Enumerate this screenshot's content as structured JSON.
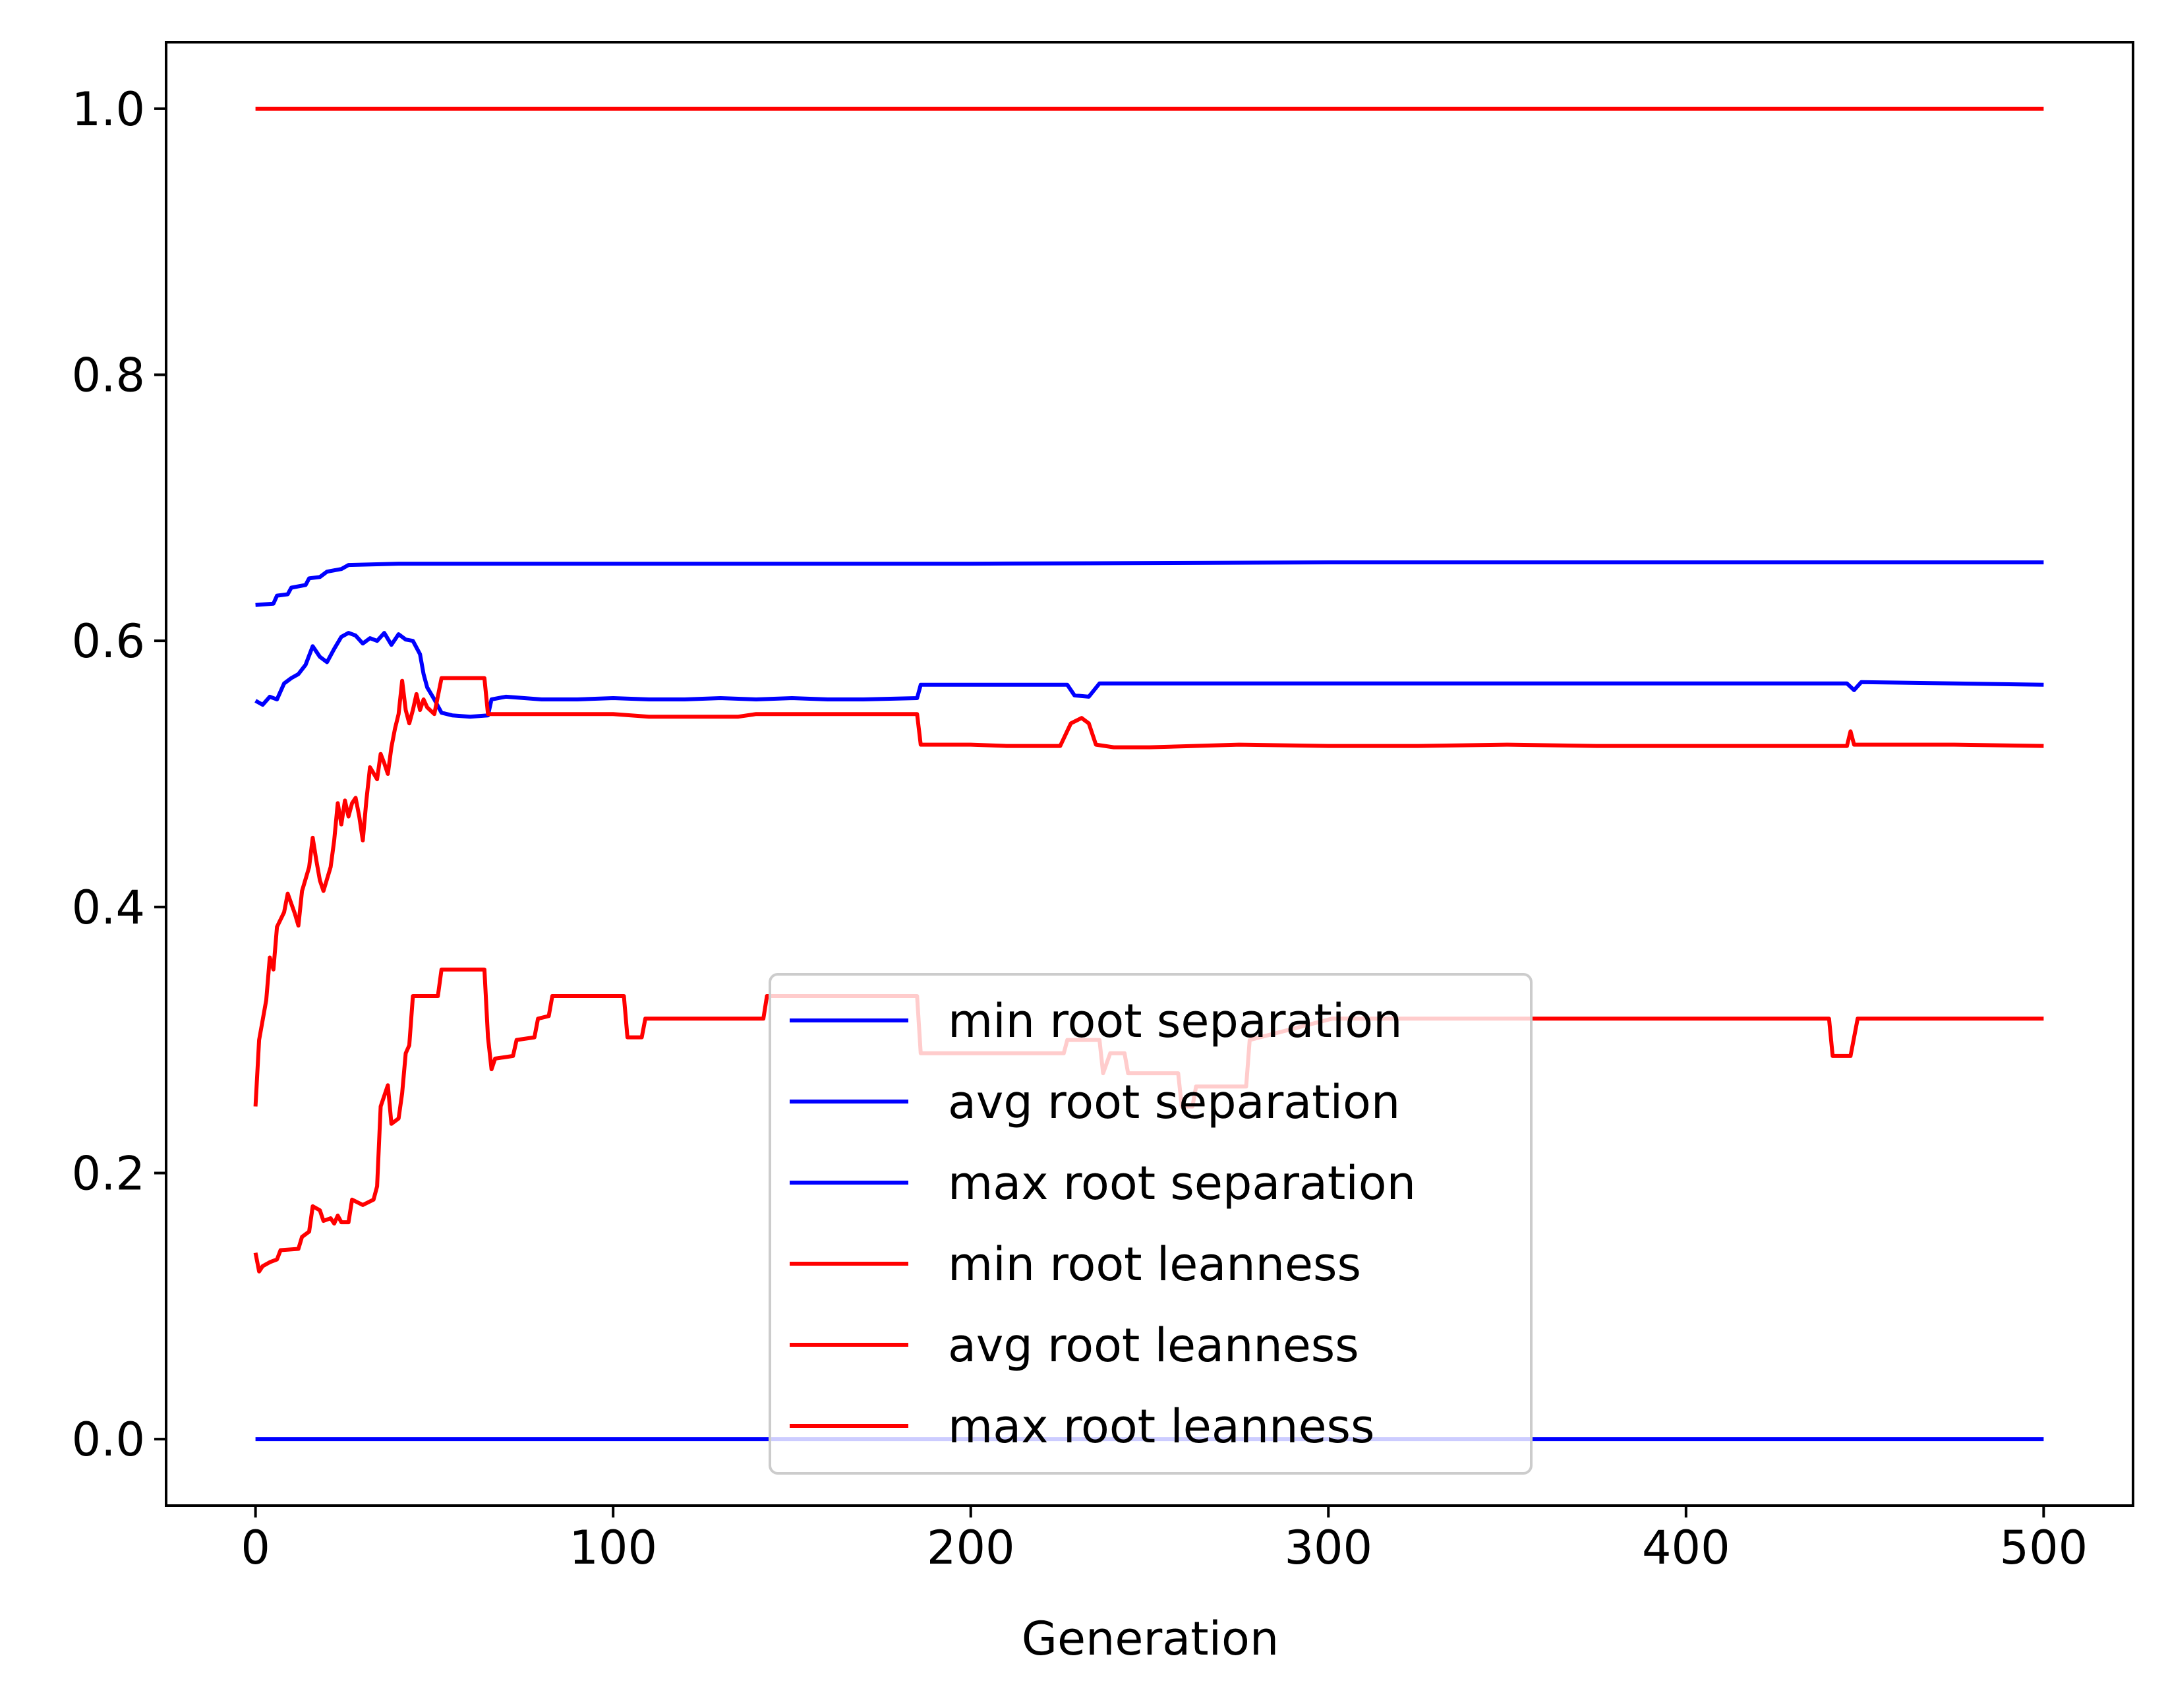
{
  "chart_data": {
    "type": "line",
    "title": "",
    "xlabel": "Generation",
    "ylabel": "",
    "xlim": [
      -25,
      525
    ],
    "ylim": [
      -0.05,
      1.05
    ],
    "x_ticks": [
      0,
      100,
      200,
      300,
      400,
      500
    ],
    "x_tick_labels": [
      "0",
      "100",
      "200",
      "300",
      "400",
      "500"
    ],
    "y_ticks": [
      0.0,
      0.2,
      0.4,
      0.6,
      0.8,
      1.0
    ],
    "y_tick_labels": [
      "0.0",
      "0.2",
      "0.4",
      "0.6",
      "0.8",
      "1.0"
    ],
    "grid": false,
    "legend_position": "lower-center",
    "series": [
      {
        "name": "min root separation",
        "color": "#0000ff",
        "points": [
          [
            0,
            0.0
          ],
          [
            500,
            0.0
          ]
        ]
      },
      {
        "name": "avg root separation",
        "color": "#0000ff",
        "points": [
          [
            0,
            0.555
          ],
          [
            2,
            0.552
          ],
          [
            4,
            0.558
          ],
          [
            6,
            0.556
          ],
          [
            8,
            0.568
          ],
          [
            10,
            0.572
          ],
          [
            12,
            0.575
          ],
          [
            14,
            0.582
          ],
          [
            16,
            0.596
          ],
          [
            18,
            0.588
          ],
          [
            20,
            0.584
          ],
          [
            22,
            0.594
          ],
          [
            24,
            0.603
          ],
          [
            26,
            0.606
          ],
          [
            28,
            0.604
          ],
          [
            30,
            0.598
          ],
          [
            32,
            0.602
          ],
          [
            34,
            0.6
          ],
          [
            36,
            0.606
          ],
          [
            38,
            0.597
          ],
          [
            40,
            0.605
          ],
          [
            42,
            0.601
          ],
          [
            44,
            0.6
          ],
          [
            46,
            0.59
          ],
          [
            47,
            0.575
          ],
          [
            48,
            0.565
          ],
          [
            50,
            0.556
          ],
          [
            52,
            0.546
          ],
          [
            55,
            0.544
          ],
          [
            60,
            0.543
          ],
          [
            65,
            0.544
          ],
          [
            66,
            0.556
          ],
          [
            70,
            0.558
          ],
          [
            80,
            0.556
          ],
          [
            90,
            0.556
          ],
          [
            100,
            0.557
          ],
          [
            110,
            0.556
          ],
          [
            120,
            0.556
          ],
          [
            130,
            0.557
          ],
          [
            140,
            0.556
          ],
          [
            150,
            0.557
          ],
          [
            160,
            0.556
          ],
          [
            170,
            0.556
          ],
          [
            185,
            0.557
          ],
          [
            186,
            0.567
          ],
          [
            200,
            0.567
          ],
          [
            210,
            0.567
          ],
          [
            220,
            0.567
          ],
          [
            227,
            0.567
          ],
          [
            229,
            0.559
          ],
          [
            233,
            0.558
          ],
          [
            236,
            0.568
          ],
          [
            250,
            0.568
          ],
          [
            275,
            0.568
          ],
          [
            300,
            0.568
          ],
          [
            325,
            0.568
          ],
          [
            350,
            0.568
          ],
          [
            375,
            0.568
          ],
          [
            400,
            0.568
          ],
          [
            425,
            0.568
          ],
          [
            445,
            0.568
          ],
          [
            447,
            0.563
          ],
          [
            449,
            0.569
          ],
          [
            475,
            0.568
          ],
          [
            500,
            0.567
          ]
        ]
      },
      {
        "name": "max root separation",
        "color": "#0000ff",
        "points": [
          [
            0,
            0.627
          ],
          [
            5,
            0.628
          ],
          [
            6,
            0.634
          ],
          [
            9,
            0.635
          ],
          [
            10,
            0.64
          ],
          [
            14,
            0.642
          ],
          [
            15,
            0.647
          ],
          [
            18,
            0.648
          ],
          [
            20,
            0.652
          ],
          [
            24,
            0.654
          ],
          [
            26,
            0.657
          ],
          [
            40,
            0.658
          ],
          [
            100,
            0.658
          ],
          [
            200,
            0.658
          ],
          [
            300,
            0.659
          ],
          [
            400,
            0.659
          ],
          [
            500,
            0.659
          ]
        ]
      },
      {
        "name": "min root leanness",
        "color": "#ff0000",
        "points": [
          [
            0,
            0.14
          ],
          [
            1,
            0.126
          ],
          [
            2,
            0.13
          ],
          [
            4,
            0.133
          ],
          [
            6,
            0.135
          ],
          [
            7,
            0.142
          ],
          [
            12,
            0.143
          ],
          [
            13,
            0.152
          ],
          [
            15,
            0.156
          ],
          [
            16,
            0.175
          ],
          [
            18,
            0.172
          ],
          [
            19,
            0.164
          ],
          [
            21,
            0.166
          ],
          [
            22,
            0.162
          ],
          [
            23,
            0.168
          ],
          [
            24,
            0.163
          ],
          [
            26,
            0.163
          ],
          [
            27,
            0.18
          ],
          [
            30,
            0.176
          ],
          [
            33,
            0.18
          ],
          [
            34,
            0.19
          ],
          [
            35,
            0.25
          ],
          [
            37,
            0.266
          ],
          [
            38,
            0.237
          ],
          [
            40,
            0.241
          ],
          [
            41,
            0.26
          ],
          [
            42,
            0.29
          ],
          [
            43,
            0.296
          ],
          [
            44,
            0.333
          ],
          [
            51,
            0.333
          ],
          [
            52,
            0.353
          ],
          [
            64,
            0.353
          ],
          [
            65,
            0.302
          ],
          [
            66,
            0.278
          ],
          [
            67,
            0.286
          ],
          [
            72,
            0.288
          ],
          [
            73,
            0.3
          ],
          [
            78,
            0.302
          ],
          [
            79,
            0.316
          ],
          [
            82,
            0.318
          ],
          [
            83,
            0.333
          ],
          [
            103,
            0.333
          ],
          [
            104,
            0.302
          ],
          [
            108,
            0.302
          ],
          [
            109,
            0.316
          ],
          [
            142,
            0.316
          ],
          [
            143,
            0.333
          ],
          [
            185,
            0.333
          ],
          [
            186,
            0.29
          ],
          [
            226,
            0.29
          ],
          [
            227,
            0.3
          ],
          [
            236,
            0.3
          ],
          [
            237,
            0.275
          ],
          [
            239,
            0.29
          ],
          [
            243,
            0.29
          ],
          [
            244,
            0.275
          ],
          [
            258,
            0.275
          ],
          [
            259,
            0.25
          ],
          [
            262,
            0.25
          ],
          [
            263,
            0.265
          ],
          [
            277,
            0.265
          ],
          [
            278,
            0.3
          ],
          [
            301,
            0.316
          ],
          [
            400,
            0.316
          ],
          [
            440,
            0.316
          ],
          [
            441,
            0.288
          ],
          [
            446,
            0.288
          ],
          [
            448,
            0.316
          ],
          [
            500,
            0.316
          ]
        ]
      },
      {
        "name": "avg root leanness",
        "color": "#ff0000",
        "points": [
          [
            0,
            0.25
          ],
          [
            1,
            0.3
          ],
          [
            3,
            0.33
          ],
          [
            4,
            0.362
          ],
          [
            5,
            0.353
          ],
          [
            6,
            0.385
          ],
          [
            8,
            0.396
          ],
          [
            9,
            0.41
          ],
          [
            11,
            0.395
          ],
          [
            12,
            0.386
          ],
          [
            13,
            0.412
          ],
          [
            15,
            0.43
          ],
          [
            16,
            0.452
          ],
          [
            17,
            0.435
          ],
          [
            18,
            0.42
          ],
          [
            19,
            0.412
          ],
          [
            21,
            0.43
          ],
          [
            22,
            0.45
          ],
          [
            23,
            0.478
          ],
          [
            24,
            0.462
          ],
          [
            25,
            0.48
          ],
          [
            26,
            0.468
          ],
          [
            27,
            0.478
          ],
          [
            28,
            0.482
          ],
          [
            29,
            0.468
          ],
          [
            30,
            0.45
          ],
          [
            31,
            0.48
          ],
          [
            32,
            0.505
          ],
          [
            34,
            0.496
          ],
          [
            35,
            0.515
          ],
          [
            36,
            0.508
          ],
          [
            37,
            0.5
          ],
          [
            38,
            0.52
          ],
          [
            39,
            0.534
          ],
          [
            40,
            0.545
          ],
          [
            41,
            0.57
          ],
          [
            42,
            0.548
          ],
          [
            43,
            0.538
          ],
          [
            44,
            0.548
          ],
          [
            45,
            0.56
          ],
          [
            46,
            0.548
          ],
          [
            47,
            0.556
          ],
          [
            48,
            0.55
          ],
          [
            50,
            0.545
          ],
          [
            52,
            0.572
          ],
          [
            64,
            0.572
          ],
          [
            65,
            0.545
          ],
          [
            80,
            0.545
          ],
          [
            100,
            0.545
          ],
          [
            110,
            0.543
          ],
          [
            120,
            0.543
          ],
          [
            135,
            0.543
          ],
          [
            140,
            0.545
          ],
          [
            150,
            0.545
          ],
          [
            160,
            0.545
          ],
          [
            170,
            0.545
          ],
          [
            185,
            0.545
          ],
          [
            186,
            0.522
          ],
          [
            200,
            0.522
          ],
          [
            210,
            0.521
          ],
          [
            225,
            0.521
          ],
          [
            228,
            0.538
          ],
          [
            231,
            0.542
          ],
          [
            233,
            0.538
          ],
          [
            235,
            0.522
          ],
          [
            240,
            0.52
          ],
          [
            250,
            0.52
          ],
          [
            275,
            0.522
          ],
          [
            300,
            0.521
          ],
          [
            325,
            0.521
          ],
          [
            350,
            0.522
          ],
          [
            375,
            0.521
          ],
          [
            400,
            0.521
          ],
          [
            425,
            0.521
          ],
          [
            445,
            0.521
          ],
          [
            446,
            0.532
          ],
          [
            447,
            0.522
          ],
          [
            475,
            0.522
          ],
          [
            500,
            0.521
          ]
        ]
      },
      {
        "name": "max root leanness",
        "color": "#ff0000",
        "points": [
          [
            0,
            1.0
          ],
          [
            500,
            1.0
          ]
        ]
      }
    ]
  },
  "legend": {
    "entries": [
      "min root separation",
      "avg root separation",
      "max root separation",
      "min root leanness",
      "avg root leanness",
      "max root leanness"
    ]
  }
}
